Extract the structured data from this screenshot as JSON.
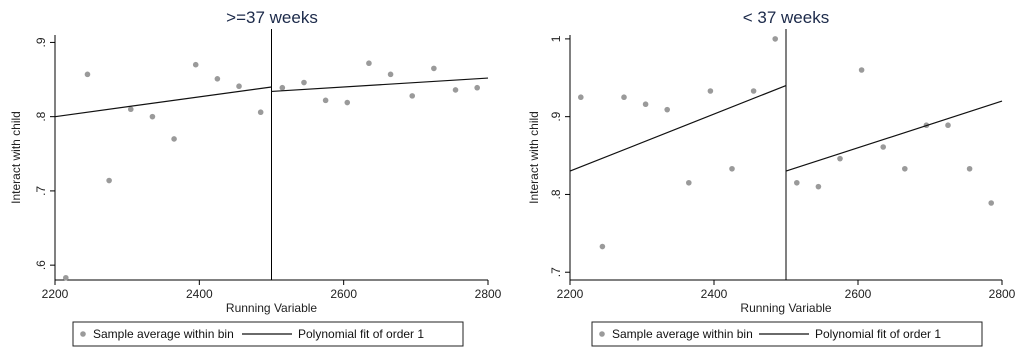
{
  "chart_data": [
    {
      "type": "scatter",
      "title": ">=37 weeks",
      "xlabel": "Running Variable",
      "ylabel": "Interact with child",
      "xlim": [
        2200,
        2800
      ],
      "ylim": [
        0.58,
        0.91
      ],
      "xticks": [
        2200,
        2400,
        2600,
        2800
      ],
      "xtick_labels": [
        "2200",
        "2400",
        "2600",
        "2800"
      ],
      "yticks": [
        0.6,
        0.7,
        0.8,
        0.9
      ],
      "ytick_labels": [
        ".6",
        ".7",
        ".8",
        ".9"
      ],
      "cutoff": 2500,
      "series": [
        {
          "name": "Sample average within bin",
          "kind": "points",
          "color": "#9a9a9a",
          "x": [
            2215,
            2245,
            2275,
            2305,
            2335,
            2365,
            2395,
            2425,
            2455,
            2485,
            2515,
            2545,
            2575,
            2605,
            2635,
            2665,
            2695,
            2725,
            2755,
            2785
          ],
          "y": [
            0.583,
            0.857,
            0.714,
            0.81,
            0.8,
            0.77,
            0.87,
            0.851,
            0.841,
            0.806,
            0.839,
            0.846,
            0.822,
            0.819,
            0.872,
            0.857,
            0.828,
            0.865,
            0.836,
            0.839
          ]
        },
        {
          "name": "Polynomial fit of order 1",
          "kind": "fit",
          "color": "#111111",
          "segments": [
            {
              "x": [
                2200,
                2500
              ],
              "y": [
                0.8,
                0.84
              ]
            },
            {
              "x": [
                2500,
                2800
              ],
              "y": [
                0.834,
                0.852
              ]
            }
          ]
        }
      ],
      "legend": "bottom"
    },
    {
      "type": "scatter",
      "title": "< 37 weeks",
      "xlabel": "Running Variable",
      "ylabel": "Interact with child",
      "xlim": [
        2200,
        2800
      ],
      "ylim": [
        0.69,
        1.005
      ],
      "xticks": [
        2200,
        2400,
        2600,
        2800
      ],
      "xtick_labels": [
        "2200",
        "2400",
        "2600",
        "2800"
      ],
      "yticks": [
        0.7,
        0.8,
        0.9,
        1.0
      ],
      "ytick_labels": [
        ".7",
        ".8",
        ".9",
        "1"
      ],
      "cutoff": 2500,
      "series": [
        {
          "name": "Sample average within bin",
          "kind": "points",
          "color": "#9a9a9a",
          "x": [
            2215,
            2245,
            2275,
            2305,
            2335,
            2365,
            2395,
            2425,
            2455,
            2485,
            2515,
            2545,
            2575,
            2605,
            2635,
            2665,
            2695,
            2725,
            2755,
            2785
          ],
          "y": [
            0.925,
            0.733,
            0.925,
            0.916,
            0.909,
            0.815,
            0.933,
            0.833,
            0.933,
            1.0,
            0.815,
            0.81,
            0.846,
            0.96,
            0.861,
            0.833,
            0.889,
            0.889,
            0.833,
            0.789
          ]
        },
        {
          "name": "Polynomial fit of order 1",
          "kind": "fit",
          "color": "#111111",
          "segments": [
            {
              "x": [
                2200,
                2500
              ],
              "y": [
                0.83,
                0.94
              ]
            },
            {
              "x": [
                2500,
                2800
              ],
              "y": [
                0.83,
                0.92
              ]
            }
          ]
        }
      ],
      "legend": "bottom"
    }
  ]
}
